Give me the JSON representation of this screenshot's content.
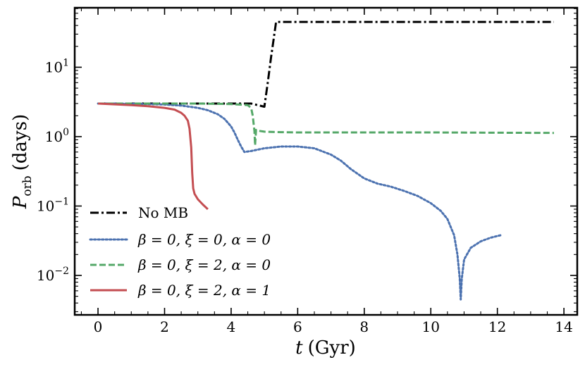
{
  "chart_data": {
    "type": "line",
    "title": "",
    "xlabel": "t (Gyr)",
    "ylabel": "P_orb (days)",
    "xlabel_parts": {
      "var": "t",
      "unit": "(Gyr)"
    },
    "ylabel_parts": {
      "var": "P",
      "sub": "orb",
      "unit": "(days)"
    },
    "xscale": "linear",
    "yscale": "log",
    "xlim": [
      -0.7,
      14.4
    ],
    "ylim": [
      0.0027,
      72
    ],
    "xticks": [
      0,
      2,
      4,
      6,
      8,
      10,
      12,
      14
    ],
    "xtick_labels": [
      "0",
      "2",
      "4",
      "6",
      "8",
      "10",
      "12",
      "14"
    ],
    "yticks": [
      0.01,
      0.1,
      1.0,
      10
    ],
    "ytick_labels": [
      {
        "base": "10",
        "exp": "−2"
      },
      {
        "base": "10",
        "exp": "−1"
      },
      {
        "base": "10",
        "exp": "0"
      },
      {
        "base": "10",
        "exp": "1"
      }
    ],
    "legend_position": "lower-left",
    "series": [
      {
        "name": "No MB",
        "label_text": "No MB",
        "color": "#000000",
        "style": "dashdot",
        "x": [
          0,
          1,
          2,
          3,
          4,
          4.6,
          5.0,
          5.1,
          5.2,
          5.28,
          5.35,
          6,
          8,
          10,
          12,
          13.7
        ],
        "y": [
          3.0,
          3.0,
          3.0,
          3.0,
          3.0,
          3.0,
          2.7,
          6,
          14,
          26,
          45,
          45,
          45,
          45,
          45,
          45
        ]
      },
      {
        "name": "β = 0, ξ = 0, α = 0",
        "label_text": "β = 0, ξ = 0, α = 0",
        "color": "#4C72B0",
        "style": "dotted",
        "x": [
          0,
          0.5,
          1,
          1.5,
          2,
          2.5,
          3,
          3.3,
          3.6,
          3.8,
          4.0,
          4.1,
          4.2,
          4.3,
          4.4,
          4.6,
          5.0,
          5.5,
          6.0,
          6.5,
          7.0,
          7.3,
          7.6,
          8.0,
          8.4,
          8.8,
          9.2,
          9.6,
          10.0,
          10.3,
          10.5,
          10.7,
          10.8,
          10.87,
          10.9,
          10.93,
          11.0,
          11.2,
          11.5,
          11.8,
          12.1
        ],
        "y": [
          3.0,
          3.0,
          2.98,
          2.95,
          2.9,
          2.8,
          2.6,
          2.4,
          2.1,
          1.8,
          1.4,
          1.15,
          0.9,
          0.72,
          0.6,
          0.62,
          0.68,
          0.72,
          0.72,
          0.68,
          0.55,
          0.45,
          0.34,
          0.25,
          0.21,
          0.19,
          0.165,
          0.14,
          0.11,
          0.085,
          0.065,
          0.038,
          0.02,
          0.009,
          0.0045,
          0.009,
          0.017,
          0.025,
          0.031,
          0.035,
          0.038
        ]
      },
      {
        "name": "β = 0, ξ = 2, α = 0",
        "label_text": "β = 0, ξ = 2, α = 0",
        "color": "#55A868",
        "style": "dashed",
        "x": [
          0,
          1,
          2,
          3,
          4,
          4.5,
          4.6,
          4.65,
          4.7,
          4.72,
          4.75,
          4.8,
          5.0,
          5.5,
          6,
          8,
          10,
          12,
          13.7
        ],
        "y": [
          3.0,
          3.0,
          3.0,
          3.0,
          2.95,
          2.85,
          2.6,
          2.0,
          1.2,
          0.75,
          1.25,
          1.22,
          1.18,
          1.16,
          1.15,
          1.15,
          1.15,
          1.14,
          1.13
        ],
        "y_note": "approximate"
      },
      {
        "name": "β = 0, ξ = 2, α = 1",
        "label_text": "β = 0, ξ = 2, α = 1",
        "color": "#C44E52",
        "style": "solid",
        "x": [
          0,
          0.5,
          1.0,
          1.5,
          2.0,
          2.3,
          2.5,
          2.6,
          2.7,
          2.75,
          2.8,
          2.83,
          2.86,
          2.9,
          3.0,
          3.15,
          3.3
        ],
        "y": [
          3.0,
          2.92,
          2.85,
          2.75,
          2.6,
          2.45,
          2.2,
          2.0,
          1.7,
          1.3,
          0.7,
          0.3,
          0.18,
          0.15,
          0.125,
          0.105,
          0.09
        ]
      }
    ]
  }
}
